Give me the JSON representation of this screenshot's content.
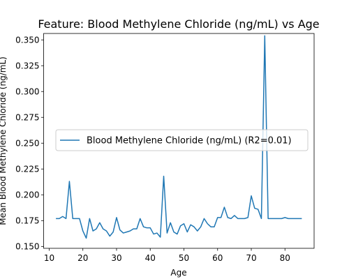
{
  "chart_data": {
    "type": "line",
    "title": "Feature: Blood Methylene Chloride (ng/mL) vs Age",
    "xlabel": "Age",
    "ylabel": "Mean Blood Methylene Chloride (ng/mL)",
    "xlim": [
      8.35,
      88.65
    ],
    "ylim": [
      0.1482,
      0.3562
    ],
    "xticks": [
      10,
      20,
      30,
      40,
      50,
      60,
      70,
      80
    ],
    "yticks": [
      0.15,
      0.175,
      0.2,
      0.225,
      0.25,
      0.275,
      0.3,
      0.325,
      0.35
    ],
    "ytick_labels": [
      "0.150",
      "0.175",
      "0.200",
      "0.225",
      "0.250",
      "0.275",
      "0.300",
      "0.325",
      "0.350"
    ],
    "grid": false,
    "legend_position": "center-left",
    "series": [
      {
        "name": "Blood Methylene Chloride (ng/mL) (R2=0.01)",
        "color": "#1f77b4",
        "x": [
          12,
          13,
          14,
          15,
          16,
          17,
          18,
          19,
          20,
          21,
          22,
          23,
          24,
          25,
          26,
          27,
          28,
          29,
          30,
          31,
          32,
          33,
          34,
          35,
          36,
          37,
          38,
          39,
          40,
          41,
          42,
          43,
          44,
          45,
          46,
          47,
          48,
          49,
          50,
          51,
          52,
          53,
          54,
          55,
          56,
          57,
          58,
          59,
          60,
          61,
          62,
          63,
          64,
          65,
          66,
          67,
          68,
          69,
          70,
          71,
          72,
          73,
          74,
          75,
          76,
          77,
          78,
          79,
          80,
          81,
          82,
          83,
          84,
          85
        ],
        "y": [
          0.177,
          0.177,
          0.179,
          0.177,
          0.213,
          0.177,
          0.177,
          0.177,
          0.165,
          0.158,
          0.177,
          0.165,
          0.167,
          0.173,
          0.167,
          0.165,
          0.16,
          0.164,
          0.178,
          0.166,
          0.163,
          0.164,
          0.165,
          0.167,
          0.167,
          0.177,
          0.169,
          0.168,
          0.168,
          0.162,
          0.163,
          0.159,
          0.218,
          0.163,
          0.173,
          0.164,
          0.162,
          0.17,
          0.172,
          0.164,
          0.171,
          0.169,
          0.165,
          0.169,
          0.177,
          0.172,
          0.169,
          0.169,
          0.178,
          0.178,
          0.188,
          0.178,
          0.177,
          0.18,
          0.177,
          0.177,
          0.177,
          0.178,
          0.199,
          0.187,
          0.186,
          0.177,
          0.354,
          0.177,
          0.177,
          0.177,
          0.177,
          0.177,
          0.178,
          0.177,
          0.177,
          0.177,
          0.177,
          0.177
        ]
      }
    ]
  }
}
